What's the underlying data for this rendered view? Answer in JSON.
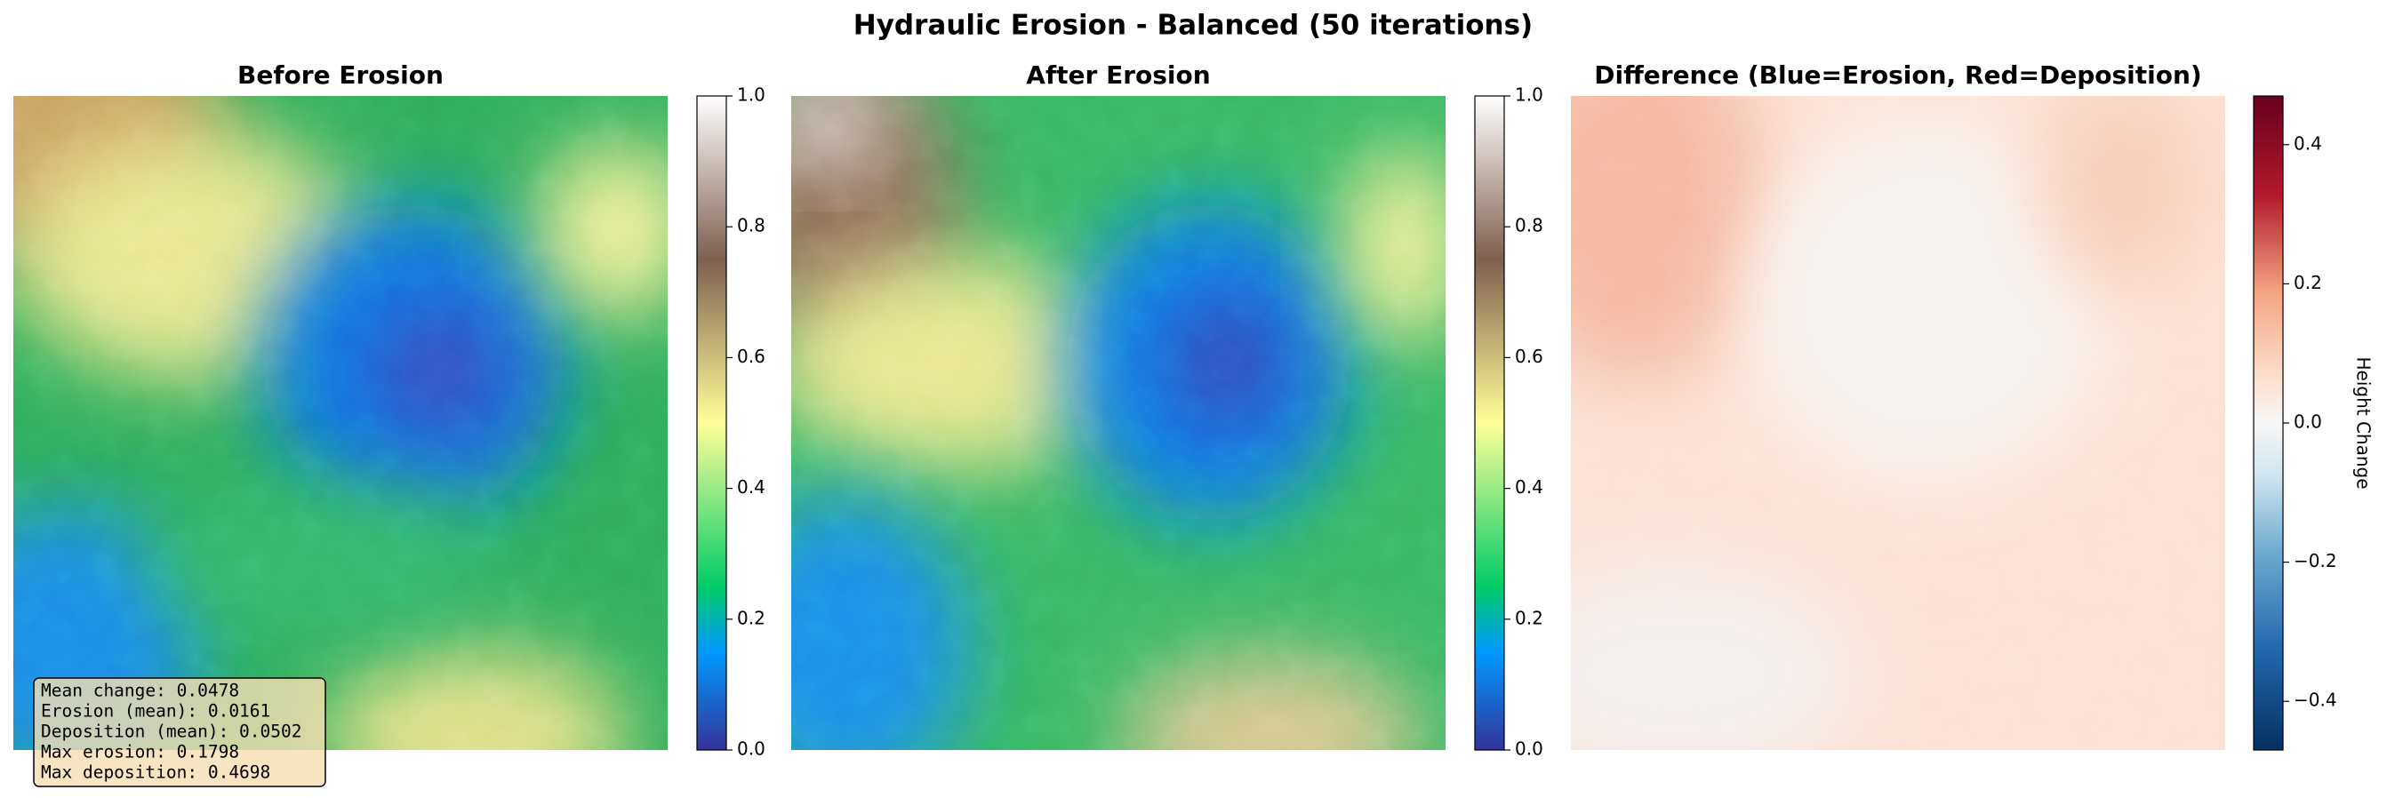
{
  "title": "Hydraulic Erosion - Balanced (50 iterations)",
  "chart_data": [
    {
      "type": "heatmap",
      "title": "Before Erosion",
      "colormap": "terrain",
      "clim": [
        0,
        1
      ],
      "cticks": [
        {
          "value": 0,
          "label": "0.0"
        },
        0.2,
        0.4,
        0.6,
        0.8,
        {
          "value": 1,
          "label": "1.0"
        }
      ],
      "annotations": [
        "Mean change: 0.0478",
        "Erosion (mean): 0.0161",
        "Deposition (mean): 0.0502",
        "Max erosion: 0.1798",
        "Max deposition: 0.4698"
      ]
    },
    {
      "type": "heatmap",
      "title": "After Erosion",
      "colormap": "terrain",
      "clim": [
        0,
        1
      ],
      "cticks": [
        {
          "value": 0,
          "label": "0.0"
        },
        0.2,
        0.4,
        0.6,
        0.8,
        {
          "value": 1,
          "label": "1.0"
        }
      ]
    },
    {
      "type": "heatmap",
      "title": "Difference (Blue=Erosion, Red=Deposition)",
      "colormap": "RdBu_r",
      "clim": [
        -0.47,
        0.47
      ],
      "cticks": [
        {
          "value": -0.4,
          "label": "−0.4"
        },
        {
          "value": -0.2,
          "label": "−0.2"
        },
        {
          "value": 0,
          "label": "0.0"
        },
        0.2,
        0.4
      ],
      "colorbar_label": "Height Change"
    }
  ]
}
